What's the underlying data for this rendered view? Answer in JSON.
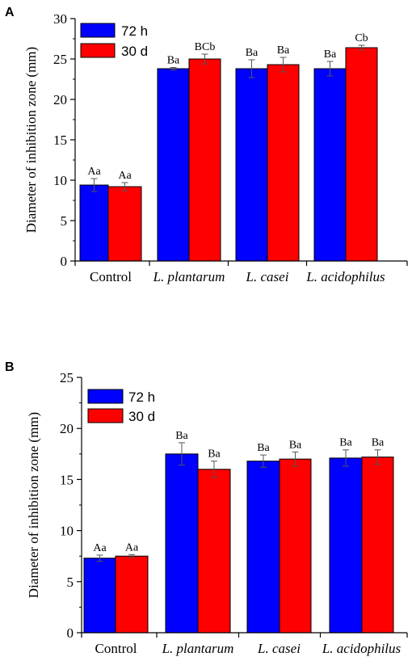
{
  "chart_data": [
    {
      "type": "bar",
      "panel": "A",
      "categories": [
        "Control",
        "L. plantarum",
        "L. casei",
        "L. acidophilus"
      ],
      "category_italic": [
        false,
        true,
        true,
        true
      ],
      "series": [
        {
          "name": "72 h",
          "color": "#0000ff",
          "values": [
            9.4,
            23.8,
            23.8,
            23.8
          ],
          "errors": [
            0.8,
            0.15,
            1.1,
            0.9
          ],
          "labels": [
            "Aa",
            "Ba",
            "Ba",
            "Ba"
          ]
        },
        {
          "name": "30 d",
          "color": "#ff0000",
          "values": [
            9.2,
            25.0,
            24.3,
            26.4
          ],
          "errors": [
            0.5,
            0.6,
            0.9,
            0.3
          ],
          "labels": [
            "Aa",
            "BCb",
            "Ba",
            "Cb"
          ]
        }
      ],
      "ylabel": "Diameter of inhibition zone (mm)",
      "ylim": [
        0,
        30
      ],
      "yticks": [
        0,
        5,
        10,
        15,
        20,
        25,
        30
      ],
      "legend": "top-left",
      "grid": false
    },
    {
      "type": "bar",
      "panel": "B",
      "categories": [
        "Control",
        "L. plantarum",
        "L. casei",
        "L. acidophilus"
      ],
      "category_italic": [
        false,
        true,
        true,
        true
      ],
      "series": [
        {
          "name": "72 h",
          "color": "#0000ff",
          "values": [
            7.3,
            17.5,
            16.8,
            17.1
          ],
          "errors": [
            0.3,
            1.1,
            0.6,
            0.8
          ],
          "labels": [
            "Aa",
            "Ba",
            "Ba",
            "Ba"
          ]
        },
        {
          "name": "30 d",
          "color": "#ff0000",
          "values": [
            7.5,
            16.0,
            17.0,
            17.2
          ],
          "errors": [
            0.15,
            0.8,
            0.7,
            0.7
          ],
          "labels": [
            "Aa",
            "Ba",
            "Ba",
            "Ba"
          ]
        }
      ],
      "ylabel": "Diameter of inhibition zone (mm)",
      "ylim": [
        0,
        25
      ],
      "yticks": [
        0,
        5,
        10,
        15,
        20,
        25
      ],
      "legend": "top-left",
      "grid": false
    }
  ]
}
